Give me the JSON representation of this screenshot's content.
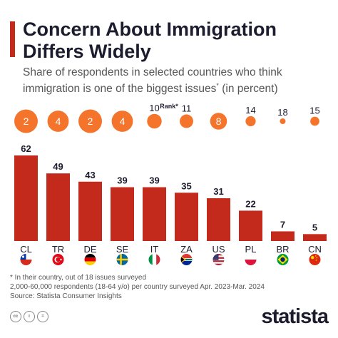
{
  "header": {
    "title": "Concern About Immigration Differs Widely",
    "subtitle": "Share of respondents in selected countries who think immigration is one of the biggest issues",
    "subtitle_sup": "*",
    "subtitle_suffix": " (in percent)"
  },
  "chart_data": {
    "type": "bar",
    "categories": [
      "CL",
      "TR",
      "DE",
      "SE",
      "IT",
      "ZA",
      "US",
      "PL",
      "BR",
      "CN"
    ],
    "values": [
      62,
      49,
      43,
      39,
      39,
      35,
      31,
      22,
      7,
      5
    ],
    "ranks": [
      2,
      4,
      2,
      4,
      10,
      11,
      8,
      14,
      18,
      15
    ],
    "rank_label": "Rank*",
    "ylim": [
      0,
      65
    ],
    "grid": false,
    "colors": {
      "bar": "#c42a1c",
      "bubble": "#f4742b",
      "text": "#1c1c2e"
    }
  },
  "flags": [
    "chile-flag-icon",
    "turkey-flag-icon",
    "germany-flag-icon",
    "sweden-flag-icon",
    "italy-flag-icon",
    "south-africa-flag-icon",
    "usa-flag-icon",
    "poland-flag-icon",
    "brazil-flag-icon",
    "china-flag-icon"
  ],
  "footer": {
    "note1": "* In their country, out of 18 issues surveyed",
    "note2": "2,000-60,000 respondents (18-64 y/o) per country surveyed Apr. 2023-Mar. 2024",
    "source": "Source: Statista Consumer Insights",
    "brand": "statista"
  }
}
